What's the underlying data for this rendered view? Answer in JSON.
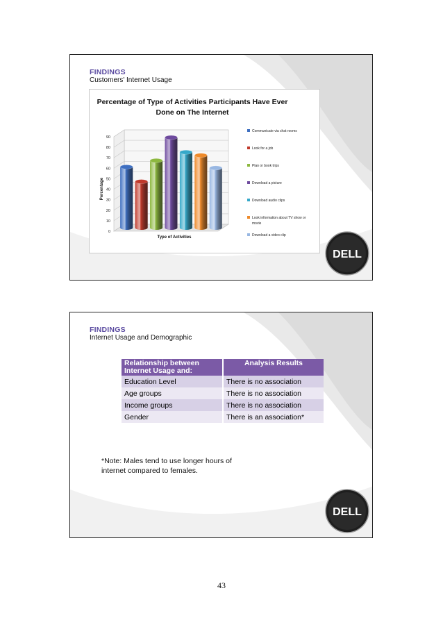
{
  "slide1": {
    "heading": "FINDINGS",
    "subtitle": "Customers' Internet Usage",
    "logo_text": "DELL"
  },
  "chart_data": {
    "type": "bar",
    "title": "Percentage of Type of Activities Participants Have Ever Done on The Internet",
    "title_lines": [
      "Percentage of Type of Activities Participants Have Ever",
      "Done on The Internet"
    ],
    "xlabel": "Type of Activities",
    "ylabel": "Percentage",
    "ylim": [
      0,
      90
    ],
    "yticks": [
      "0",
      "10",
      "20",
      "30",
      "40",
      "50",
      "60",
      "70",
      "80",
      "90"
    ],
    "categories": [
      "Communicate via chat rooms",
      "Look for a job",
      "Plan or book trips",
      "Download a picture",
      "Download audio clips",
      "Look information about TV show or movie",
      "Download a video clip"
    ],
    "values": [
      58,
      44,
      64,
      86,
      72,
      69,
      57
    ],
    "colors": [
      "#3e6fc1",
      "#c0392b",
      "#8db83f",
      "#6e4a9e",
      "#35a8c9",
      "#ee8a2a",
      "#98b7e2"
    ],
    "legend": [
      {
        "lines": [
          "Communicate via chat rooms"
        ]
      },
      {
        "lines": [
          "Look for a job"
        ]
      },
      {
        "lines": [
          "Plan or book trips"
        ]
      },
      {
        "lines": [
          "Download a picture"
        ]
      },
      {
        "lines": [
          "Download audio clips"
        ]
      },
      {
        "lines": [
          "Look information about TV show or",
          "movie"
        ]
      },
      {
        "lines": [
          "Download a video clip"
        ]
      }
    ],
    "grid": true,
    "legend_position": "right"
  },
  "slide2": {
    "heading": "FINDINGS",
    "subtitle": "Internet Usage and Demographic",
    "table": {
      "col1_header_line1": "Relationship between",
      "col1_header_line2": "Internet Usage and:",
      "col2_header": "Analysis Results",
      "rows": [
        {
          "factor": "Education Level",
          "result": "There is no association"
        },
        {
          "factor": "Age groups",
          "result": "There is no association"
        },
        {
          "factor": "Income groups",
          "result": "There is no association"
        },
        {
          "factor": "Gender",
          "result": "There is an association*"
        }
      ]
    },
    "note_line1": "*Note: Males tend to use longer hours of",
    "note_line2": "internet compared to females.",
    "logo_text": "DELL"
  },
  "page_number": "43"
}
